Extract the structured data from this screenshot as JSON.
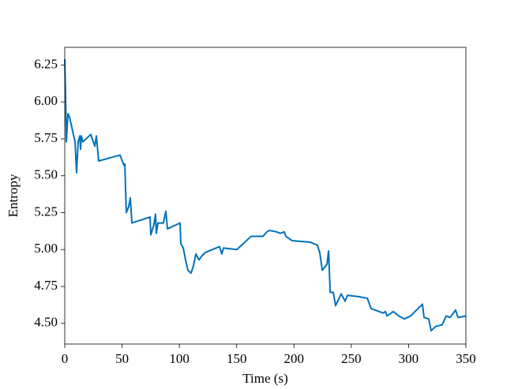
{
  "chart_data": {
    "type": "line",
    "xlabel": "Time (s)",
    "ylabel": "Entropy",
    "xlim": [
      0,
      350
    ],
    "ylim": [
      4.36,
      6.37
    ],
    "xticks": [
      0,
      50,
      100,
      150,
      200,
      250,
      300,
      350
    ],
    "yticks": [
      {
        "value": 4.5,
        "label": "4.50"
      },
      4.75,
      {
        "value": 5.0,
        "label": "5.00"
      },
      5.25,
      {
        "value": 5.5,
        "label": "5.50"
      },
      5.75,
      {
        "value": 6.0,
        "label": "6.00"
      },
      6.25
    ],
    "grid": false,
    "series": [
      {
        "color": "#0072bd",
        "x": [
          0,
          0.7,
          1.4,
          2.8,
          4.1,
          9,
          10.3,
          11.7,
          13.1,
          13.8,
          14.5,
          15.8,
          22.7,
          26.2,
          27.6,
          29.6,
          48.2,
          51.7,
          52.4,
          53.7,
          55.8,
          57.2,
          58.6,
          74.4,
          75.1,
          77.8,
          79.2,
          79.9,
          81.3,
          86.1,
          88.2,
          89.6,
          100.6,
          101.3,
          103.4,
          105.4,
          107.5,
          110.2,
          112.3,
          114.4,
          117.1,
          120,
          122.6,
          135,
          137.1,
          138.5,
          150.2,
          158.5,
          162.6,
          173,
          176.4,
          178.5,
          184.7,
          188.1,
          191.5,
          192.9,
          198.4,
          214.3,
          220.4,
          222.5,
          224.7,
          228.8,
          230.2,
          231.6,
          234.3,
          236.3,
          241.2,
          244.6,
          246.7,
          257.1,
          264,
          267.3,
          277.7,
          279.8,
          281.1,
          286.7,
          291.5,
          296.3,
          301.8,
          312.1,
          313.5,
          317.6,
          319.7,
          323.8,
          329.3,
          332.8,
          336.2,
          341,
          343.1,
          350
        ],
        "values": [
          6.29,
          6.05,
          5.73,
          5.92,
          5.9,
          5.73,
          5.52,
          5.73,
          5.77,
          5.68,
          5.77,
          5.73,
          5.78,
          5.7,
          5.77,
          5.6,
          5.64,
          5.57,
          5.58,
          5.25,
          5.29,
          5.35,
          5.18,
          5.22,
          5.1,
          5.17,
          5.24,
          5.11,
          5.18,
          5.18,
          5.26,
          5.14,
          5.18,
          5.04,
          5.01,
          4.93,
          4.86,
          4.84,
          4.89,
          4.97,
          4.93,
          4.96,
          4.98,
          5.02,
          4.97,
          5.01,
          5.0,
          5.06,
          5.09,
          5.09,
          5.12,
          5.13,
          5.12,
          5.11,
          5.12,
          5.09,
          5.06,
          5.05,
          5.03,
          4.98,
          4.86,
          4.9,
          4.99,
          4.71,
          4.71,
          4.62,
          4.7,
          4.65,
          4.69,
          4.68,
          4.67,
          4.6,
          4.57,
          4.58,
          4.55,
          4.58,
          4.55,
          4.53,
          4.55,
          4.63,
          4.54,
          4.53,
          4.45,
          4.48,
          4.49,
          4.55,
          4.54,
          4.59,
          4.54,
          4.55
        ]
      }
    ]
  }
}
